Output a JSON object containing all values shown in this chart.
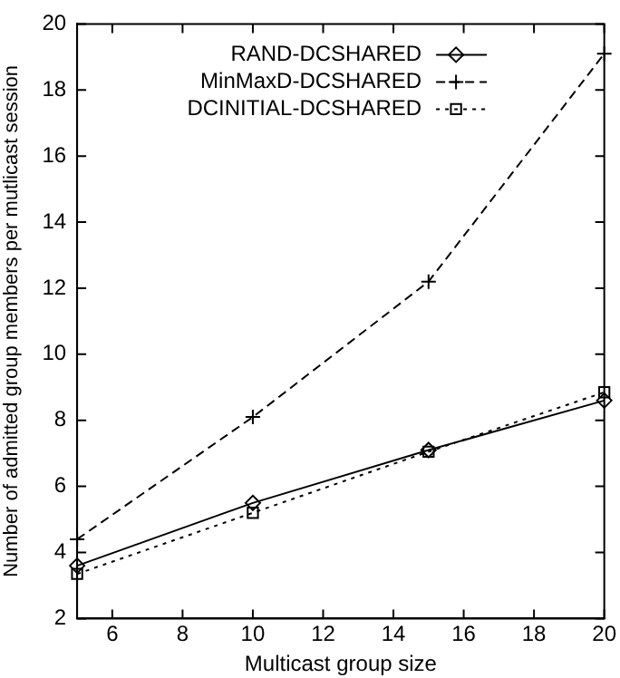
{
  "chart_data": {
    "type": "line",
    "xlabel": "Multicast group size",
    "ylabel": "Number of admitted group members per mutlicast session",
    "x": [
      5,
      10,
      15,
      20
    ],
    "series": [
      {
        "name": "RAND-DCSHARED",
        "color": "#000000",
        "values": [
          3.6,
          5.5,
          7.1,
          8.6
        ],
        "marker": "diamond",
        "line_style": "solid"
      },
      {
        "name": "MinMaxD-DCSHARED",
        "color": "#000000",
        "values": [
          4.4,
          8.1,
          12.2,
          19.1
        ],
        "marker": "cross",
        "line_style": "dashed"
      },
      {
        "name": "DCINITIAL-DCSHARED",
        "color": "#000000",
        "values": [
          3.35,
          5.2,
          7.05,
          8.85
        ],
        "marker": "square",
        "line_style": "dotted"
      }
    ],
    "xlim": [
      5,
      20
    ],
    "xticks": [
      6,
      8,
      10,
      12,
      14,
      16,
      18,
      20
    ],
    "ylim": [
      2,
      20
    ],
    "yticks": [
      2,
      4,
      6,
      8,
      10,
      12,
      14,
      16,
      18,
      20
    ],
    "grid": false,
    "legend": "top left"
  }
}
